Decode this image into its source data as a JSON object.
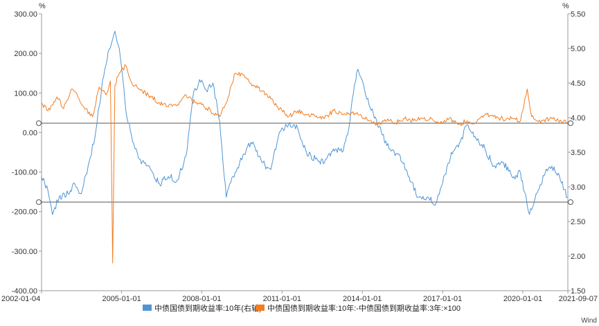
{
  "chart_data": {
    "type": "line",
    "title": "",
    "left_unit": "%",
    "right_unit": "%",
    "source": "Wind",
    "grid": false,
    "legend_position": "bottom",
    "x_range": [
      "2002-01-04",
      "2021-09-07"
    ],
    "x_ticks": [
      "2002-01-04",
      "2005-01-01",
      "2008-01-01",
      "2011-01-01",
      "2014-01-01",
      "2017-01-01",
      "2020-01-01",
      "2021-09-07"
    ],
    "y_left": {
      "min": -400,
      "max": 300,
      "ticks": [
        "300.00",
        "200.00",
        "100.00",
        "0.00",
        "-100.00",
        "-200.00",
        "-300.00",
        "-400.00"
      ]
    },
    "y_right": {
      "min": 1.5,
      "max": 5.5,
      "ticks": [
        "5.50",
        "5.00",
        "4.50",
        "4.00",
        "3.50",
        "3.00",
        "2.50",
        "2.00",
        "1.50"
      ]
    },
    "reference_lines": [
      {
        "axis": "right",
        "value": 3.92
      },
      {
        "axis": "right",
        "value": 2.78
      }
    ],
    "series": [
      {
        "name": "中债国债到期收益率:10年(右轴)",
        "axis": "right",
        "color": "#4e94d4",
        "x": [
          "2002-01",
          "2002-04",
          "2002-06",
          "2002-09",
          "2003-01",
          "2003-04",
          "2003-07",
          "2003-10",
          "2004-01",
          "2004-04",
          "2004-07",
          "2004-10",
          "2004-12",
          "2005-03",
          "2005-06",
          "2005-09",
          "2006-01",
          "2006-06",
          "2006-10",
          "2007-02",
          "2007-06",
          "2007-09",
          "2007-12",
          "2008-03",
          "2008-06",
          "2008-09",
          "2008-12",
          "2009-03",
          "2009-06",
          "2009-09",
          "2009-12",
          "2010-04",
          "2010-08",
          "2010-12",
          "2011-04",
          "2011-08",
          "2011-12",
          "2012-04",
          "2012-08",
          "2012-12",
          "2013-04",
          "2013-07",
          "2013-09",
          "2013-11",
          "2014-02",
          "2014-06",
          "2014-10",
          "2015-01",
          "2015-06",
          "2015-10",
          "2016-02",
          "2016-06",
          "2016-10",
          "2017-01",
          "2017-05",
          "2017-09",
          "2017-12",
          "2018-04",
          "2018-08",
          "2018-12",
          "2019-04",
          "2019-09",
          "2019-12",
          "2020-04",
          "2020-07",
          "2020-11",
          "2021-02",
          "2021-05",
          "2021-09"
        ],
        "y": [
          3.15,
          2.95,
          2.6,
          2.85,
          2.9,
          3.05,
          2.9,
          3.3,
          3.7,
          4.4,
          4.95,
          5.25,
          5.0,
          4.1,
          3.65,
          3.4,
          3.3,
          3.05,
          3.15,
          3.1,
          3.45,
          4.3,
          4.55,
          4.4,
          4.5,
          3.95,
          2.85,
          3.15,
          3.35,
          3.55,
          3.65,
          3.35,
          3.25,
          3.8,
          3.9,
          3.85,
          3.5,
          3.4,
          3.35,
          3.55,
          3.5,
          3.85,
          4.35,
          4.7,
          4.4,
          4.05,
          3.75,
          3.55,
          3.45,
          3.15,
          2.85,
          2.85,
          2.75,
          3.05,
          3.5,
          3.65,
          3.9,
          3.7,
          3.55,
          3.3,
          3.35,
          3.15,
          3.2,
          2.6,
          2.9,
          3.2,
          3.3,
          3.2,
          2.85
        ]
      },
      {
        "name": "中债国债到期收益率:10年:-中债国债到期收益率:3年:×100",
        "axis": "left",
        "color": "#f07d22",
        "x": [
          "2002-01",
          "2002-04",
          "2002-08",
          "2002-11",
          "2003-03",
          "2003-06",
          "2003-09",
          "2003-12",
          "2004-03",
          "2004-06",
          "2004-08",
          "2004-09",
          "2004-10",
          "2004-12",
          "2005-03",
          "2005-06",
          "2005-09",
          "2006-01",
          "2006-06",
          "2006-10",
          "2007-02",
          "2007-06",
          "2007-10",
          "2008-01",
          "2008-05",
          "2008-09",
          "2008-12",
          "2009-04",
          "2009-08",
          "2009-12",
          "2010-04",
          "2010-08",
          "2010-12",
          "2011-04",
          "2011-08",
          "2011-12",
          "2012-04",
          "2012-08",
          "2012-12",
          "2013-04",
          "2013-08",
          "2013-12",
          "2014-04",
          "2014-08",
          "2014-12",
          "2015-04",
          "2015-08",
          "2015-12",
          "2016-04",
          "2016-08",
          "2016-12",
          "2017-04",
          "2017-08",
          "2017-12",
          "2018-04",
          "2018-08",
          "2018-12",
          "2019-04",
          "2019-08",
          "2019-12",
          "2020-03",
          "2020-05",
          "2020-07",
          "2020-10",
          "2021-01",
          "2021-05",
          "2021-09"
        ],
        "y": [
          75,
          55,
          90,
          60,
          110,
          85,
          60,
          40,
          115,
          95,
          130,
          -330,
          120,
          150,
          170,
          120,
          110,
          95,
          75,
          65,
          70,
          95,
          75,
          70,
          55,
          40,
          75,
          150,
          145,
          120,
          105,
          85,
          60,
          40,
          55,
          45,
          40,
          35,
          55,
          45,
          50,
          45,
          30,
          20,
          30,
          25,
          35,
          30,
          35,
          35,
          25,
          35,
          20,
          30,
          25,
          45,
          40,
          35,
          35,
          30,
          110,
          40,
          30,
          30,
          35,
          30,
          25
        ]
      }
    ]
  }
}
